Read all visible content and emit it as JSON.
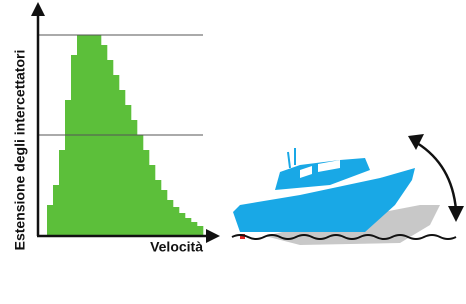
{
  "chart_data": {
    "type": "bar",
    "x_label": "Velocità",
    "y_label": "Estensione degli intercettatori",
    "categories": [
      null,
      null,
      null,
      null,
      null,
      null,
      null,
      null,
      null,
      null,
      null,
      null,
      null,
      null,
      null,
      null,
      null,
      null,
      null,
      null,
      null,
      null,
      null,
      null,
      null,
      null
    ],
    "values": [
      0.3,
      0.5,
      0.85,
      1.35,
      1.8,
      2,
      2,
      2,
      2,
      1.9,
      1.75,
      1.6,
      1.45,
      1.3,
      1.15,
      1,
      0.85,
      0.7,
      0.55,
      0.45,
      0.35,
      0.28,
      0.22,
      0.17,
      0.13,
      0.09
    ],
    "color": "#5cbf3a",
    "ylim": [
      0,
      2.3
    ],
    "ygrid": [
      1,
      2
    ]
  }
}
